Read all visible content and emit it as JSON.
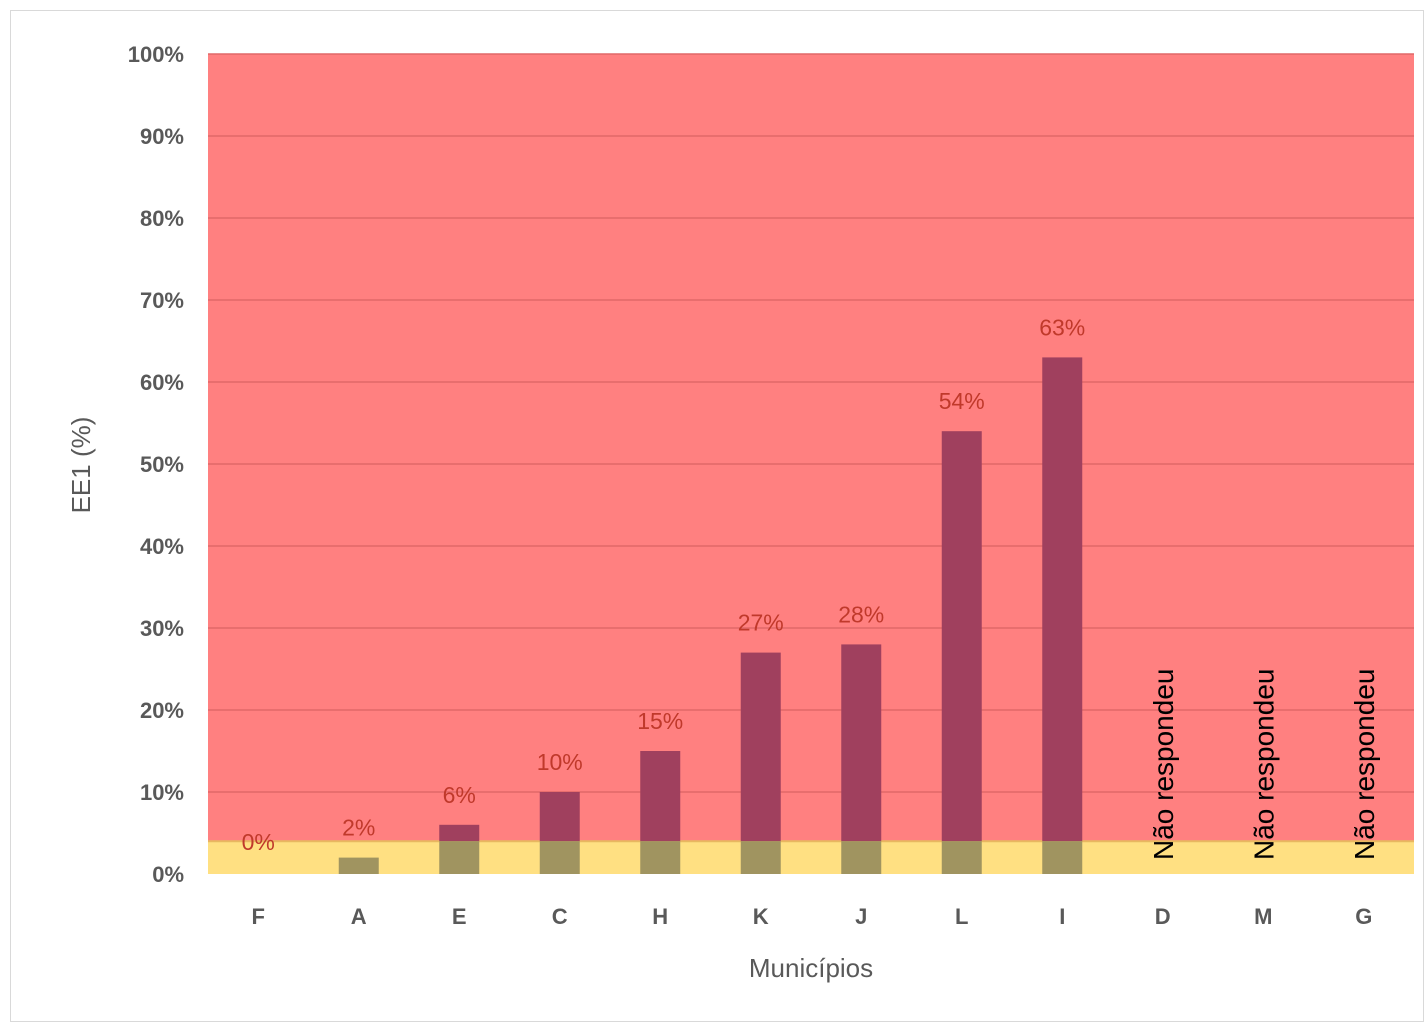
{
  "chart_data": {
    "type": "bar",
    "title": "",
    "xlabel": "Municípios",
    "ylabel": "EE1 (%)",
    "ylim": [
      0,
      100
    ],
    "yticks": [
      "0%",
      "10%",
      "20%",
      "30%",
      "40%",
      "50%",
      "60%",
      "70%",
      "80%",
      "90%",
      "100%"
    ],
    "categories": [
      "F",
      "A",
      "E",
      "C",
      "H",
      "K",
      "J",
      "L",
      "I",
      "D",
      "M",
      "G"
    ],
    "values": [
      0,
      2,
      6,
      10,
      15,
      27,
      28,
      54,
      63,
      null,
      null,
      null
    ],
    "data_labels": [
      "0%",
      "2%",
      "6%",
      "10%",
      "15%",
      "27%",
      "28%",
      "54%",
      "63%",
      "Não respondeu",
      "Não respondeu",
      "Não respondeu"
    ],
    "background_bands": [
      {
        "from": 0,
        "to": 4,
        "color": "#ffe082"
      },
      {
        "from": 4,
        "to": 100,
        "color": "#ff8080"
      }
    ],
    "bar_color": "#a0405e",
    "bar_color_in_low_band": "#a09460",
    "grid": true
  }
}
